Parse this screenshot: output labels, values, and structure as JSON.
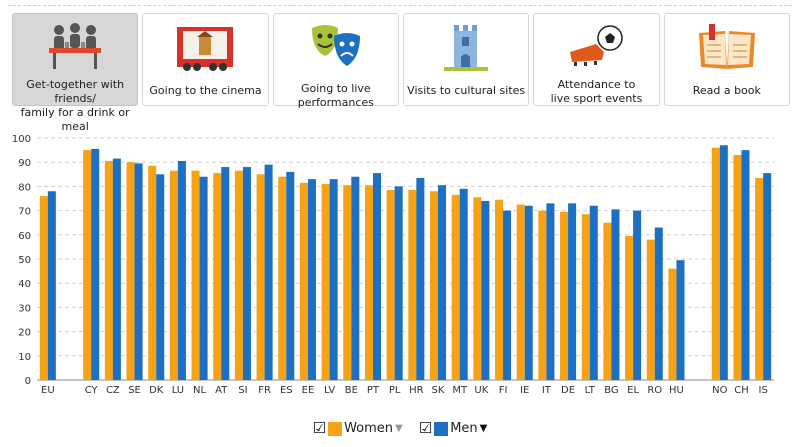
{
  "tabs": [
    {
      "label": "Get-together with friends/\nfamily for a drink or meal",
      "icon": "friends-table-icon",
      "active": true
    },
    {
      "label": "Going to the cinema",
      "icon": "cinema-screen-icon",
      "active": false
    },
    {
      "label": "Going to live performances",
      "icon": "theatre-masks-icon",
      "active": false
    },
    {
      "label": "Visits to cultural sites",
      "icon": "castle-tower-icon",
      "active": false
    },
    {
      "label": "Attendance to\nlive sport events",
      "icon": "football-boot-icon",
      "active": false
    },
    {
      "label": "Read a book",
      "icon": "open-book-icon",
      "active": false
    }
  ],
  "legend": {
    "women_label": "Women",
    "men_label": "Men",
    "women_color": "#f5a216",
    "men_color": "#1d70c1",
    "men_caret_color": "#111111",
    "women_caret_color": "#999999"
  },
  "chart_data": {
    "type": "bar",
    "ylim": [
      0,
      100
    ],
    "yticks": [
      0,
      10,
      20,
      30,
      40,
      50,
      60,
      70,
      80,
      90,
      100
    ],
    "grid": true,
    "legend_position": "bottom",
    "categories": [
      "EU",
      "CY",
      "CZ",
      "SE",
      "DK",
      "LU",
      "NL",
      "AT",
      "SI",
      "FR",
      "ES",
      "EE",
      "LV",
      "BE",
      "PT",
      "PL",
      "HR",
      "SK",
      "MT",
      "UK",
      "FI",
      "IE",
      "IT",
      "DE",
      "LT",
      "BG",
      "EL",
      "RO",
      "HU",
      "NO",
      "CH",
      "IS"
    ],
    "groups_after_gap": [
      "CY",
      "NO"
    ],
    "series": [
      {
        "name": "Women",
        "color": "#f5a216",
        "values": [
          76,
          95,
          90.5,
          90,
          88.5,
          86.5,
          86.5,
          85.5,
          86.5,
          85,
          84,
          81.5,
          81,
          80.5,
          80.5,
          78.5,
          78.5,
          78,
          76.5,
          75.5,
          74.5,
          72.5,
          70,
          69.5,
          68.5,
          65,
          59.5,
          58,
          46,
          96,
          93,
          83.5
        ]
      },
      {
        "name": "Men",
        "color": "#1d70c1",
        "values": [
          78,
          95.5,
          91.5,
          89.5,
          85,
          90.5,
          84,
          88,
          88,
          89,
          86,
          83,
          83,
          84,
          85.5,
          80,
          83.5,
          80.5,
          79,
          74,
          70,
          72,
          73,
          73,
          72,
          70.5,
          70,
          63,
          49.5,
          97,
          95,
          85.5
        ]
      }
    ]
  }
}
